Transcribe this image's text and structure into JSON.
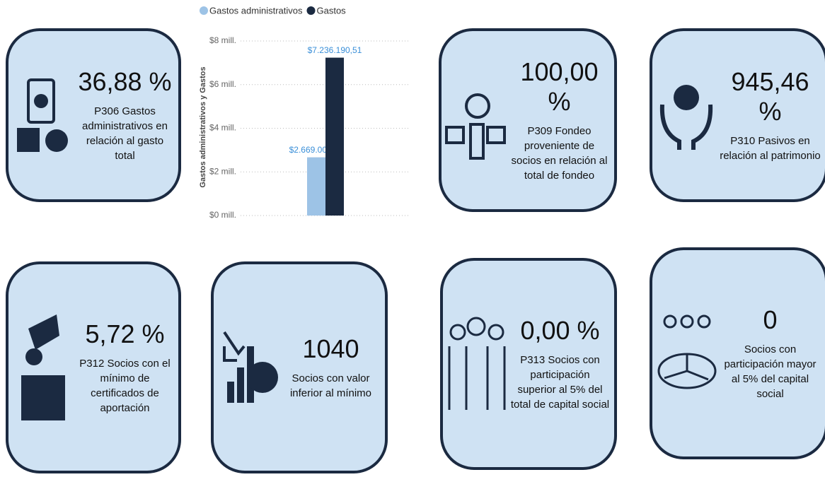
{
  "chart_data": {
    "type": "bar",
    "y_label": "Gastos administrativos y Gastos",
    "categories": [
      null
    ],
    "series": [
      {
        "name": "Gastos administrativos",
        "color": "#9dc3e6",
        "values": [
          2669002.83
        ],
        "value_labels": [
          "$2.669.002,83"
        ]
      },
      {
        "name": "Gastos",
        "color": "#1b2a41",
        "values": [
          7236190.51
        ],
        "value_labels": [
          "$7.236.190,51"
        ]
      }
    ],
    "ylim": [
      0,
      8000000
    ],
    "yticks": [
      {
        "value": 0,
        "label": "$0 mill."
      },
      {
        "value": 2000000,
        "label": "$2 mill."
      },
      {
        "value": 4000000,
        "label": "$4 mill."
      },
      {
        "value": 6000000,
        "label": "$6 mill."
      },
      {
        "value": 8000000,
        "label": "$8 mill."
      }
    ],
    "grid": true,
    "legend": "top"
  },
  "cards": [
    {
      "value": "36,88 %",
      "label": "P306 Gastos administrativos en relación al gasto total"
    },
    {
      "value": "100,00 %",
      "label": "P309 Fondeo proveniente de socios en relación al total de fondeo"
    },
    {
      "value": "945,46 %",
      "label": "P310 Pasivos en relación al patrimonio"
    },
    {
      "value": "5,72 %",
      "label": "P312 Socios con el mínimo de certificados de aportación"
    },
    {
      "value": "1040",
      "label": "Socios con valor inferior al mínimo"
    },
    {
      "value": "0,00 %",
      "label": "P313 Socios con participación superior al 5% del total de capital social"
    },
    {
      "value": "0",
      "label": "Socios con participación mayor al 5% del capital social"
    }
  ]
}
